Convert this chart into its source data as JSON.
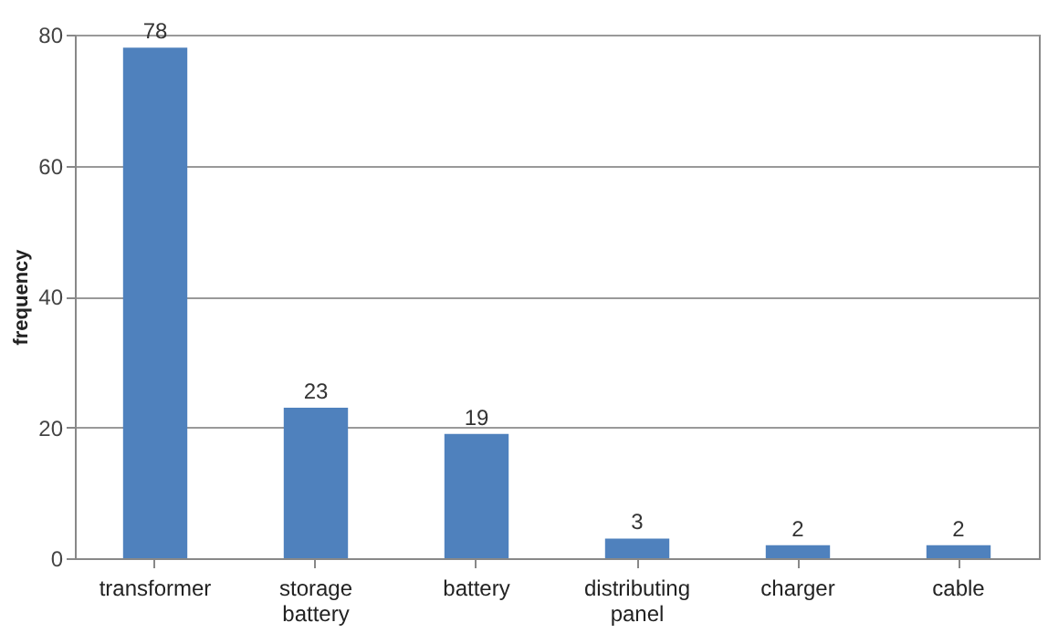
{
  "chart_data": {
    "type": "bar",
    "ylabel": "frequency",
    "categories": [
      "transformer",
      "storage battery",
      "battery",
      "distributing panel",
      "charger",
      "cable"
    ],
    "values": [
      78,
      23,
      19,
      3,
      2,
      2
    ],
    "color": "#4f81bd",
    "ylim": [
      0,
      80
    ],
    "yticks": [
      0,
      20,
      40,
      60,
      80
    ],
    "grid": "y",
    "data_labels": true
  }
}
